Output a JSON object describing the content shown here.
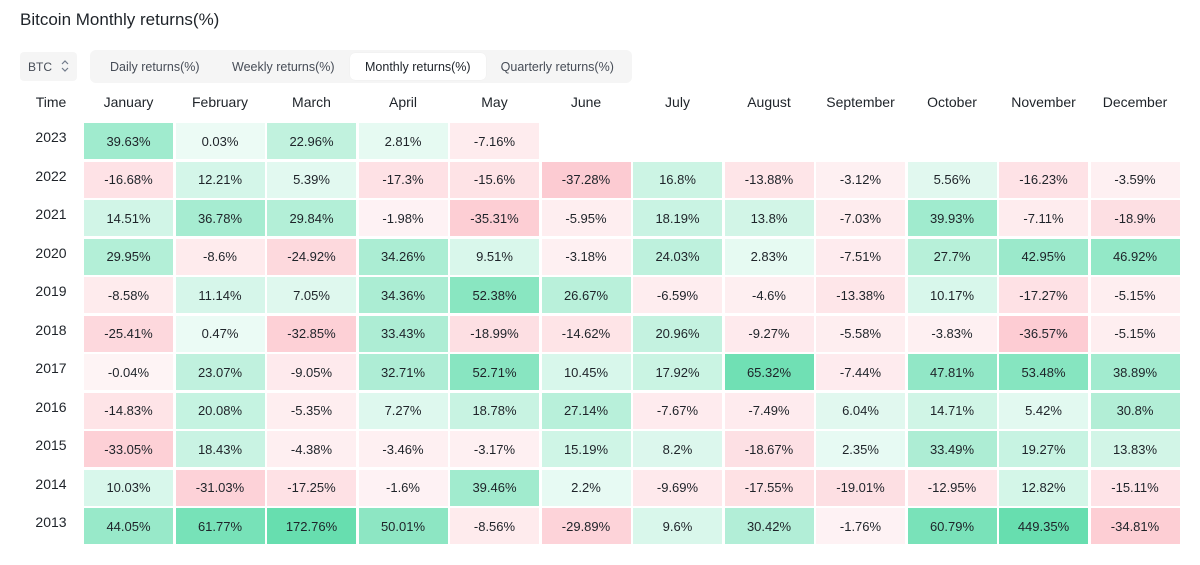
{
  "title": "Bitcoin Monthly returns(%)",
  "asset_select": {
    "value": "BTC"
  },
  "tabs": [
    {
      "label": "Daily returns(%)",
      "active": false
    },
    {
      "label": "Weekly returns(%)",
      "active": false
    },
    {
      "label": "Monthly returns(%)",
      "active": true
    },
    {
      "label": "Quarterly returns(%)",
      "active": false
    }
  ],
  "colors": {
    "positive": "#0ecb81",
    "negative": "#f6465d",
    "text": "#1e2329"
  },
  "table": {
    "time_header": "Time",
    "months": [
      "January",
      "February",
      "March",
      "April",
      "May",
      "June",
      "July",
      "August",
      "September",
      "October",
      "November",
      "December"
    ],
    "rows": [
      {
        "year": "2023",
        "values": [
          "39.63%",
          "0.03%",
          "22.96%",
          "2.81%",
          "-7.16%",
          "",
          "",
          "",
          "",
          "",
          "",
          ""
        ]
      },
      {
        "year": "2022",
        "values": [
          "-16.68%",
          "12.21%",
          "5.39%",
          "-17.3%",
          "-15.6%",
          "-37.28%",
          "16.8%",
          "-13.88%",
          "-3.12%",
          "5.56%",
          "-16.23%",
          "-3.59%"
        ]
      },
      {
        "year": "2021",
        "values": [
          "14.51%",
          "36.78%",
          "29.84%",
          "-1.98%",
          "-35.31%",
          "-5.95%",
          "18.19%",
          "13.8%",
          "-7.03%",
          "39.93%",
          "-7.11%",
          "-18.9%"
        ]
      },
      {
        "year": "2020",
        "values": [
          "29.95%",
          "-8.6%",
          "-24.92%",
          "34.26%",
          "9.51%",
          "-3.18%",
          "24.03%",
          "2.83%",
          "-7.51%",
          "27.7%",
          "42.95%",
          "46.92%"
        ]
      },
      {
        "year": "2019",
        "values": [
          "-8.58%",
          "11.14%",
          "7.05%",
          "34.36%",
          "52.38%",
          "26.67%",
          "-6.59%",
          "-4.6%",
          "-13.38%",
          "10.17%",
          "-17.27%",
          "-5.15%"
        ]
      },
      {
        "year": "2018",
        "values": [
          "-25.41%",
          "0.47%",
          "-32.85%",
          "33.43%",
          "-18.99%",
          "-14.62%",
          "20.96%",
          "-9.27%",
          "-5.58%",
          "-3.83%",
          "-36.57%",
          "-5.15%"
        ]
      },
      {
        "year": "2017",
        "values": [
          "-0.04%",
          "23.07%",
          "-9.05%",
          "32.71%",
          "52.71%",
          "10.45%",
          "17.92%",
          "65.32%",
          "-7.44%",
          "47.81%",
          "53.48%",
          "38.89%"
        ]
      },
      {
        "year": "2016",
        "values": [
          "-14.83%",
          "20.08%",
          "-5.35%",
          "7.27%",
          "18.78%",
          "27.14%",
          "-7.67%",
          "-7.49%",
          "6.04%",
          "14.71%",
          "5.42%",
          "30.8%"
        ]
      },
      {
        "year": "2015",
        "values": [
          "-33.05%",
          "18.43%",
          "-4.38%",
          "-3.46%",
          "-3.17%",
          "15.19%",
          "8.2%",
          "-18.67%",
          "2.35%",
          "33.49%",
          "19.27%",
          "13.83%"
        ]
      },
      {
        "year": "2014",
        "values": [
          "10.03%",
          "-31.03%",
          "-17.25%",
          "-1.6%",
          "39.46%",
          "2.2%",
          "-9.69%",
          "-17.55%",
          "-19.01%",
          "-12.95%",
          "12.82%",
          "-15.11%"
        ]
      },
      {
        "year": "2013",
        "values": [
          "44.05%",
          "61.77%",
          "172.76%",
          "50.01%",
          "-8.56%",
          "-29.89%",
          "9.6%",
          "30.42%",
          "-1.76%",
          "60.79%",
          "449.35%",
          "-34.81%"
        ]
      }
    ]
  }
}
